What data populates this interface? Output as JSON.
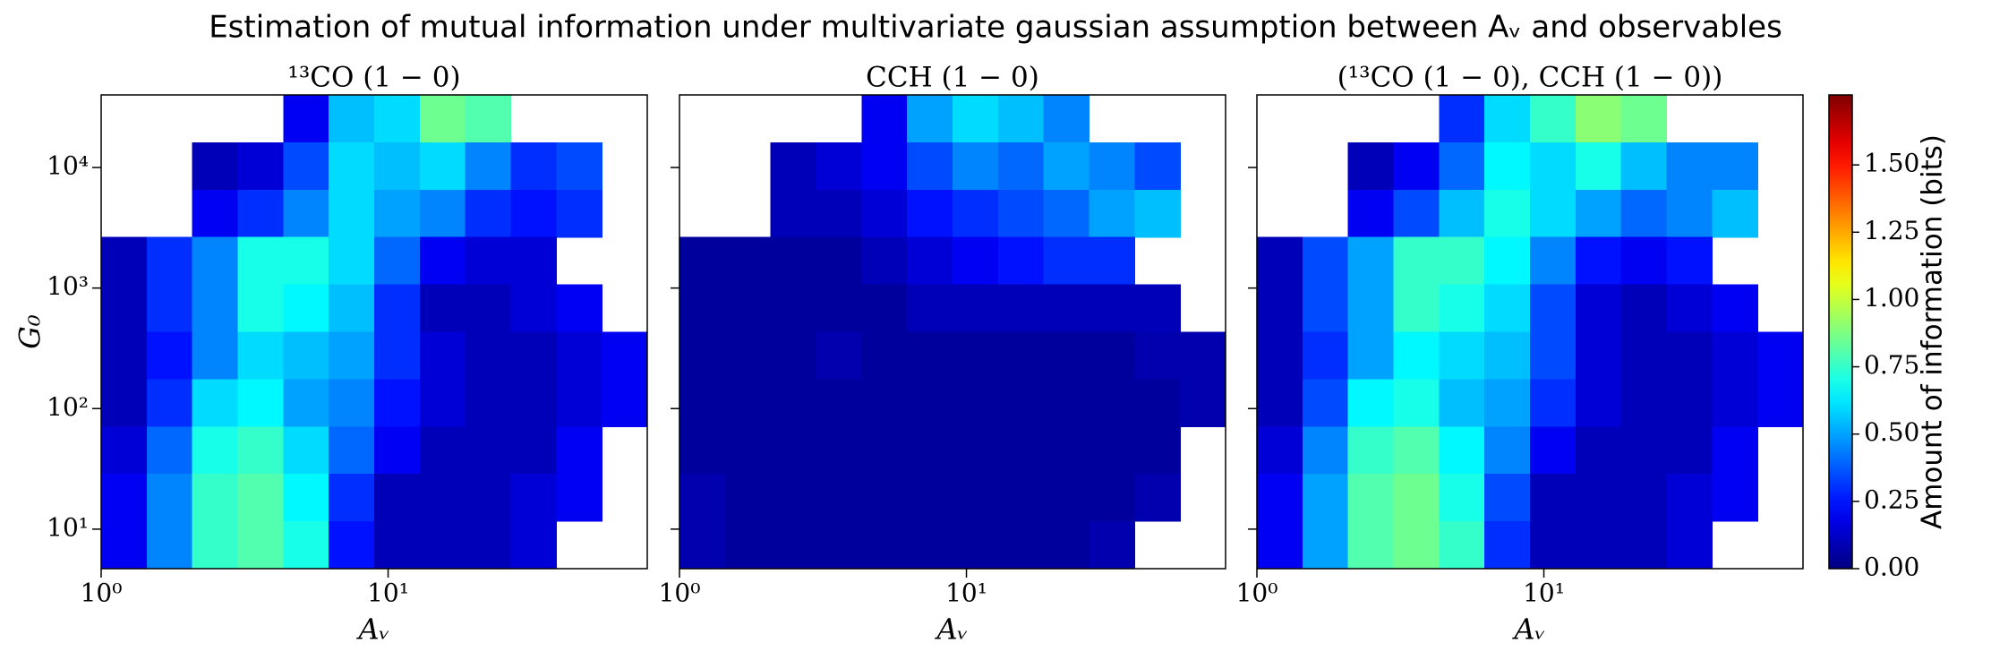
{
  "chart_data": {
    "type": "heatmap",
    "title": "Estimation of mutual information under multivariate gaussian assumption between Aᵥ and observables",
    "xlabel": "Aᵥ",
    "ylabel": "G₀",
    "colorbar_label": "Amount of information (bits)",
    "colormap": "jet",
    "log_x": true,
    "log_y": true,
    "xlim": [
      1,
      80
    ],
    "xticks": [
      {
        "value": 1,
        "label": "10⁰"
      },
      {
        "value": 10,
        "label": "10¹"
      }
    ],
    "ylim": [
      4.7,
      40000
    ],
    "yticks": [
      {
        "value": 10,
        "label": "10¹"
      },
      {
        "value": 100,
        "label": "10²"
      },
      {
        "value": 1000,
        "label": "10³"
      },
      {
        "value": 10000,
        "label": "10⁴"
      }
    ],
    "zlim": [
      0,
      1.76
    ],
    "zticks": [
      {
        "value": 0,
        "label": "0.00"
      },
      {
        "value": 0.25,
        "label": "0.25"
      },
      {
        "value": 0.5,
        "label": "0.50"
      },
      {
        "value": 0.75,
        "label": "0.75"
      },
      {
        "value": 1,
        "label": "1.00"
      },
      {
        "value": 1.25,
        "label": "1.25"
      },
      {
        "value": 1.5,
        "label": "1.50"
      }
    ],
    "panels": [
      {
        "title": "¹³CO (1 − 0)",
        "z": [
          [
            null,
            null,
            null,
            null,
            0.2,
            0.55,
            0.6,
            0.85,
            0.8,
            null,
            null,
            null
          ],
          [
            null,
            null,
            0.1,
            0.15,
            0.35,
            0.6,
            0.55,
            0.6,
            0.45,
            0.3,
            0.35,
            null
          ],
          [
            null,
            null,
            0.2,
            0.3,
            0.45,
            0.6,
            0.5,
            0.45,
            0.3,
            0.25,
            0.3,
            null
          ],
          [
            0.1,
            0.3,
            0.45,
            0.7,
            0.7,
            0.6,
            0.4,
            0.2,
            0.15,
            0.15,
            null,
            null
          ],
          [
            0.1,
            0.3,
            0.45,
            0.7,
            0.65,
            0.55,
            0.3,
            0.1,
            0.1,
            0.15,
            0.2,
            null
          ],
          [
            0.1,
            0.25,
            0.45,
            0.6,
            0.55,
            0.5,
            0.3,
            0.15,
            0.1,
            0.1,
            0.15,
            0.2
          ],
          [
            0.1,
            0.3,
            0.6,
            0.65,
            0.5,
            0.45,
            0.25,
            0.15,
            0.1,
            0.1,
            0.15,
            0.2
          ],
          [
            0.15,
            0.4,
            0.7,
            0.75,
            0.6,
            0.4,
            0.2,
            0.1,
            0.1,
            0.1,
            0.2,
            null
          ],
          [
            0.2,
            0.45,
            0.75,
            0.8,
            0.65,
            0.3,
            0.1,
            0.1,
            0.1,
            0.15,
            0.2,
            null
          ],
          [
            0.2,
            0.45,
            0.75,
            0.8,
            0.7,
            0.25,
            0.1,
            0.1,
            0.1,
            0.15,
            null,
            null
          ]
        ]
      },
      {
        "title": "CCH (1 − 0)",
        "z": [
          [
            null,
            null,
            null,
            null,
            0.2,
            0.5,
            0.6,
            0.55,
            0.45,
            null,
            null,
            null
          ],
          [
            null,
            null,
            0.1,
            0.15,
            0.2,
            0.35,
            0.45,
            0.4,
            0.5,
            0.45,
            0.35,
            null
          ],
          [
            null,
            null,
            0.1,
            0.1,
            0.15,
            0.25,
            0.3,
            0.35,
            0.4,
            0.5,
            0.55,
            null
          ],
          [
            0.05,
            0.05,
            0.05,
            0.05,
            0.1,
            0.15,
            0.2,
            0.25,
            0.3,
            0.3,
            null,
            null
          ],
          [
            0.05,
            0.05,
            0.05,
            0.05,
            0.05,
            0.1,
            0.1,
            0.1,
            0.1,
            0.1,
            0.1,
            null
          ],
          [
            0.05,
            0.05,
            0.05,
            0.08,
            0.05,
            0.05,
            0.05,
            0.05,
            0.05,
            0.05,
            0.08,
            0.08
          ],
          [
            0.05,
            0.05,
            0.05,
            0.05,
            0.05,
            0.05,
            0.05,
            0.05,
            0.05,
            0.05,
            0.05,
            0.08
          ],
          [
            0.05,
            0.05,
            0.05,
            0.05,
            0.05,
            0.05,
            0.05,
            0.05,
            0.05,
            0.05,
            0.05,
            null
          ],
          [
            0.08,
            0.05,
            0.05,
            0.05,
            0.05,
            0.05,
            0.05,
            0.05,
            0.05,
            0.05,
            0.08,
            null
          ],
          [
            0.08,
            0.05,
            0.05,
            0.05,
            0.05,
            0.05,
            0.05,
            0.05,
            0.05,
            0.08,
            null,
            null
          ]
        ]
      },
      {
        "title": "(¹³CO (1 − 0), CCH (1 − 0))",
        "z": [
          [
            null,
            null,
            null,
            null,
            0.3,
            0.6,
            0.75,
            0.9,
            0.85,
            null,
            null,
            null
          ],
          [
            null,
            null,
            0.1,
            0.2,
            0.4,
            0.65,
            0.6,
            0.7,
            0.55,
            0.45,
            0.45,
            null
          ],
          [
            null,
            null,
            0.2,
            0.35,
            0.55,
            0.7,
            0.6,
            0.5,
            0.4,
            0.45,
            0.55,
            null
          ],
          [
            0.1,
            0.35,
            0.5,
            0.75,
            0.75,
            0.65,
            0.45,
            0.25,
            0.2,
            0.25,
            null,
            null
          ],
          [
            0.1,
            0.35,
            0.5,
            0.75,
            0.7,
            0.6,
            0.35,
            0.15,
            0.1,
            0.15,
            0.2,
            null
          ],
          [
            0.1,
            0.3,
            0.5,
            0.65,
            0.6,
            0.55,
            0.35,
            0.15,
            0.1,
            0.1,
            0.15,
            0.2
          ],
          [
            0.1,
            0.35,
            0.65,
            0.7,
            0.55,
            0.5,
            0.3,
            0.15,
            0.1,
            0.1,
            0.15,
            0.2
          ],
          [
            0.15,
            0.45,
            0.75,
            0.8,
            0.65,
            0.45,
            0.2,
            0.1,
            0.1,
            0.1,
            0.2,
            null
          ],
          [
            0.2,
            0.5,
            0.8,
            0.85,
            0.7,
            0.35,
            0.1,
            0.1,
            0.1,
            0.15,
            0.2,
            null
          ],
          [
            0.2,
            0.5,
            0.8,
            0.85,
            0.75,
            0.3,
            0.1,
            0.1,
            0.1,
            0.15,
            null,
            null
          ]
        ]
      }
    ]
  }
}
